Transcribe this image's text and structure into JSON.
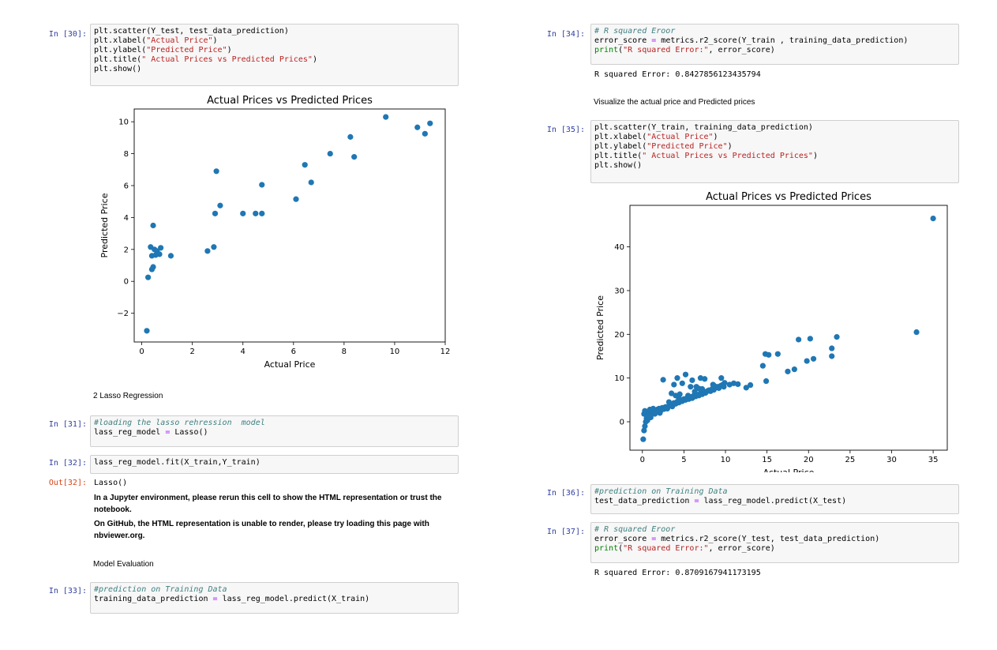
{
  "cells": {
    "c30": {
      "prompt": "In [30]:",
      "lines": [
        [
          [
            "plt.scatter(Y_test, test_data_prediction)",
            ""
          ]
        ],
        [
          [
            "plt.xlabel(",
            ""
          ],
          [
            "\"Actual Price\"",
            "str"
          ],
          [
            ")",
            ""
          ]
        ],
        [
          [
            "plt.ylabel(",
            ""
          ],
          [
            "\"Predicted Price\"",
            "str"
          ],
          [
            ")",
            ""
          ]
        ],
        [
          [
            "plt.title(",
            ""
          ],
          [
            "\" Actual Prices vs Predicted Prices\"",
            "str"
          ],
          [
            ")",
            ""
          ]
        ],
        [
          [
            "plt.show()",
            ""
          ]
        ]
      ]
    },
    "c31": {
      "prompt": "In [31]:",
      "lines": [
        [
          [
            "#loading the lasso rehression  model",
            "com"
          ]
        ],
        [
          [
            "lass_reg_model ",
            ""
          ],
          [
            "=",
            "op"
          ],
          [
            " Lasso()",
            ""
          ]
        ]
      ]
    },
    "c32": {
      "prompt": "In [32]:",
      "lines": [
        [
          [
            "lass_reg_model.fit(X_train,Y_train)",
            ""
          ]
        ]
      ]
    },
    "o32": {
      "prompt": "Out[32]:",
      "text": "Lasso()"
    },
    "warn32": {
      "line1": "In a Jupyter environment, please rerun this cell to show the HTML representation or trust the notebook.",
      "line2": "On GitHub, the HTML representation is unable to render, please try loading this page with nbviewer.org."
    },
    "c33": {
      "prompt": "In [33]:",
      "lines": [
        [
          [
            "#prediction on Training Data",
            "com"
          ]
        ],
        [
          [
            "training_data_prediction ",
            ""
          ],
          [
            "=",
            "op"
          ],
          [
            " lass_reg_model.predict(X_train)",
            ""
          ]
        ]
      ]
    },
    "c34": {
      "prompt": "In [34]:",
      "lines": [
        [
          [
            "# R squared Eroor",
            "com"
          ]
        ],
        [
          [
            "error_score ",
            ""
          ],
          [
            "=",
            "op"
          ],
          [
            " metrics.r2_score(Y_train , training_data_prediction)",
            ""
          ]
        ],
        [
          [
            "print",
            "fn"
          ],
          [
            "(",
            ""
          ],
          [
            "\"R squared Error:\"",
            "str"
          ],
          [
            ", error_score)",
            ""
          ]
        ]
      ]
    },
    "o34": {
      "text": "R squared Error: 0.8427856123435794"
    },
    "c35": {
      "prompt": "In [35]:",
      "lines": [
        [
          [
            "plt.scatter(Y_train, training_data_prediction)",
            ""
          ]
        ],
        [
          [
            "plt.xlabel(",
            ""
          ],
          [
            "\"Actual Price\"",
            "str"
          ],
          [
            ")",
            ""
          ]
        ],
        [
          [
            "plt.ylabel(",
            ""
          ],
          [
            "\"Predicted Price\"",
            "str"
          ],
          [
            ")",
            ""
          ]
        ],
        [
          [
            "plt.title(",
            ""
          ],
          [
            "\" Actual Prices vs Predicted Prices\"",
            "str"
          ],
          [
            ")",
            ""
          ]
        ],
        [
          [
            "plt.show()",
            ""
          ]
        ]
      ]
    },
    "c36": {
      "prompt": "In [36]:",
      "lines": [
        [
          [
            "#prediction on Training Data",
            "com"
          ]
        ],
        [
          [
            "test_data_prediction ",
            ""
          ],
          [
            "=",
            "op"
          ],
          [
            " lass_reg_model.predict(X_test)",
            ""
          ]
        ]
      ]
    },
    "c37": {
      "prompt": "In [37]:",
      "lines": [
        [
          [
            "# R squared Eroor",
            "com"
          ]
        ],
        [
          [
            "error_score ",
            ""
          ],
          [
            "=",
            "op"
          ],
          [
            " metrics.r2_score(Y_test, test_data_prediction)",
            ""
          ]
        ],
        [
          [
            "print",
            "fn"
          ],
          [
            "(",
            ""
          ],
          [
            "\"R squared Error:\"",
            "str"
          ],
          [
            ", error_score)",
            ""
          ]
        ]
      ]
    },
    "o37": {
      "text": "R squared Error: 0.8709167941173195"
    }
  },
  "markdown": {
    "lasso_heading": "2 Lasso Regression",
    "model_eval": "Model Evaluation",
    "visualize": "Visualize the actual price and Predicted prices"
  },
  "colors": {
    "prompt_in": "#303f9f",
    "prompt_out": "#d84315",
    "marker": "#1f77b4"
  },
  "chart_data": [
    {
      "type": "scatter",
      "title": "Actual Prices vs Predicted Prices",
      "xlabel": "Actual Price",
      "ylabel": "Predicted Price",
      "xlim": [
        -0.3,
        12
      ],
      "ylim": [
        -3.8,
        10.8
      ],
      "xticks": [
        0,
        2,
        4,
        6,
        8,
        10,
        12
      ],
      "yticks": [
        -2,
        0,
        2,
        4,
        6,
        8,
        10
      ],
      "grid": false,
      "points": [
        [
          0.2,
          -3.1
        ],
        [
          0.25,
          0.25
        ],
        [
          0.35,
          2.15
        ],
        [
          0.4,
          0.75
        ],
        [
          0.45,
          0.9
        ],
        [
          0.4,
          1.6
        ],
        [
          0.45,
          3.5
        ],
        [
          0.5,
          2.0
        ],
        [
          0.55,
          1.65
        ],
        [
          0.6,
          1.9
        ],
        [
          0.7,
          1.7
        ],
        [
          0.75,
          2.1
        ],
        [
          1.15,
          1.6
        ],
        [
          2.6,
          1.9
        ],
        [
          2.85,
          2.15
        ],
        [
          2.9,
          4.25
        ],
        [
          2.95,
          6.9
        ],
        [
          3.1,
          4.75
        ],
        [
          4.0,
          4.25
        ],
        [
          4.5,
          4.25
        ],
        [
          4.75,
          4.25
        ],
        [
          4.75,
          6.05
        ],
        [
          6.1,
          5.15
        ],
        [
          6.45,
          7.3
        ],
        [
          6.7,
          6.2
        ],
        [
          7.45,
          8.0
        ],
        [
          8.25,
          9.05
        ],
        [
          8.4,
          7.8
        ],
        [
          9.65,
          10.3
        ],
        [
          10.9,
          9.65
        ],
        [
          11.2,
          9.25
        ],
        [
          11.4,
          9.9
        ]
      ]
    },
    {
      "type": "scatter",
      "title": "Actual Prices vs Predicted Prices",
      "xlabel": "Actual Price",
      "ylabel": "Predicted Price",
      "xlim": [
        -1.5,
        36.7
      ],
      "ylim": [
        -6.5,
        49.5
      ],
      "xticks": [
        0,
        5,
        10,
        15,
        20,
        25,
        30,
        35
      ],
      "yticks": [
        0,
        10,
        20,
        30,
        40
      ],
      "grid": false,
      "points": [
        [
          0.1,
          -4.0
        ],
        [
          0.2,
          -2.0
        ],
        [
          0.3,
          -1.0
        ],
        [
          0.4,
          0.0
        ],
        [
          0.5,
          0.8
        ],
        [
          0.6,
          1.2
        ],
        [
          0.2,
          1.8
        ],
        [
          0.5,
          2.2
        ],
        [
          0.8,
          1.5
        ],
        [
          1.0,
          2.0
        ],
        [
          1.2,
          2.3
        ],
        [
          1.4,
          2.6
        ],
        [
          1.6,
          2.2
        ],
        [
          1.8,
          2.8
        ],
        [
          2.0,
          3.0
        ],
        [
          2.2,
          2.5
        ],
        [
          2.4,
          3.2
        ],
        [
          2.6,
          2.9
        ],
        [
          2.8,
          3.4
        ],
        [
          3.0,
          3.0
        ],
        [
          3.2,
          3.6
        ],
        [
          3.4,
          4.0
        ],
        [
          3.6,
          3.5
        ],
        [
          3.8,
          4.3
        ],
        [
          4.0,
          4.1
        ],
        [
          4.2,
          4.6
        ],
        [
          4.4,
          4.4
        ],
        [
          4.6,
          5.0
        ],
        [
          4.8,
          4.7
        ],
        [
          5.0,
          5.2
        ],
        [
          5.2,
          5.0
        ],
        [
          5.4,
          5.5
        ],
        [
          5.6,
          5.2
        ],
        [
          5.8,
          5.7
        ],
        [
          6.0,
          5.4
        ],
        [
          6.2,
          6.0
        ],
        [
          6.4,
          5.8
        ],
        [
          6.6,
          6.2
        ],
        [
          6.8,
          6.0
        ],
        [
          7.0,
          6.5
        ],
        [
          7.2,
          6.3
        ],
        [
          7.4,
          6.8
        ],
        [
          7.6,
          6.6
        ],
        [
          7.8,
          7.0
        ],
        [
          8.0,
          7.2
        ],
        [
          8.2,
          7.0
        ],
        [
          8.4,
          7.5
        ],
        [
          8.6,
          7.3
        ],
        [
          8.8,
          7.8
        ],
        [
          9.0,
          8.0
        ],
        [
          9.2,
          7.7
        ],
        [
          9.4,
          8.2
        ],
        [
          9.6,
          8.4
        ],
        [
          9.8,
          8.0
        ],
        [
          3.5,
          6.5
        ],
        [
          4.0,
          6.0
        ],
        [
          4.5,
          6.3
        ],
        [
          3.8,
          8.5
        ],
        [
          4.2,
          10.0
        ],
        [
          2.5,
          9.6
        ],
        [
          5.2,
          10.8
        ],
        [
          6.0,
          9.5
        ],
        [
          6.5,
          8.0
        ],
        [
          7.0,
          10.0
        ],
        [
          7.5,
          9.8
        ],
        [
          4.8,
          8.8
        ],
        [
          5.8,
          8.0
        ],
        [
          6.8,
          7.6
        ],
        [
          8.5,
          8.5
        ],
        [
          9.5,
          10.0
        ],
        [
          10.5,
          8.5
        ],
        [
          11.0,
          8.8
        ],
        [
          11.5,
          8.6
        ],
        [
          12.5,
          7.8
        ],
        [
          13.0,
          8.4
        ],
        [
          14.5,
          12.8
        ],
        [
          14.8,
          15.5
        ],
        [
          15.2,
          15.3
        ],
        [
          16.3,
          15.5
        ],
        [
          14.9,
          9.3
        ],
        [
          17.5,
          11.5
        ],
        [
          18.3,
          12.0
        ],
        [
          18.8,
          18.8
        ],
        [
          19.8,
          13.9
        ],
        [
          20.2,
          19.0
        ],
        [
          20.6,
          14.4
        ],
        [
          22.8,
          15.0
        ],
        [
          22.8,
          16.8
        ],
        [
          23.4,
          19.4
        ],
        [
          33.0,
          20.5
        ],
        [
          35.0,
          46.5
        ],
        [
          0.6,
          0.3
        ],
        [
          1.0,
          1.0
        ],
        [
          1.5,
          1.8
        ],
        [
          2.1,
          2.0
        ],
        [
          0.3,
          2.5
        ],
        [
          0.9,
          2.8
        ],
        [
          1.3,
          3.0
        ],
        [
          3.2,
          4.5
        ],
        [
          5.5,
          6.0
        ],
        [
          7.2,
          7.5
        ],
        [
          8.6,
          8.3
        ],
        [
          9.9,
          8.9
        ],
        [
          4.4,
          5.3
        ],
        [
          6.3,
          6.9
        ]
      ]
    }
  ]
}
